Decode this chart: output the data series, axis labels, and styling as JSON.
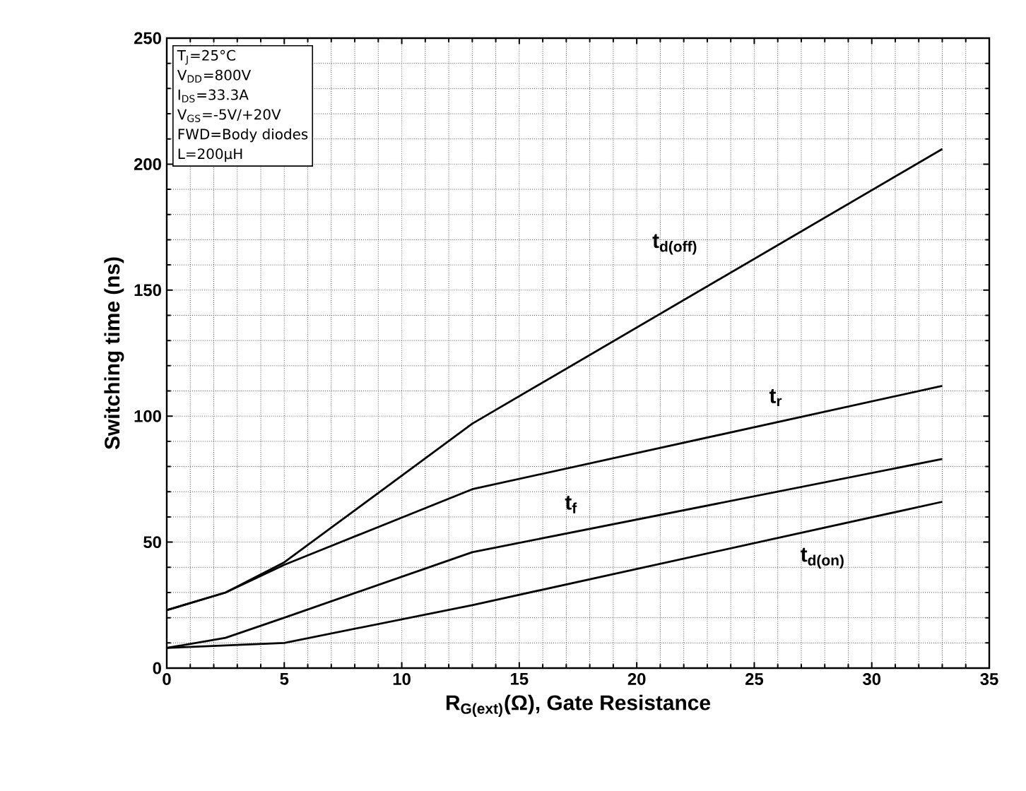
{
  "chart_data": {
    "type": "line",
    "xlabel": "R$_{G(ext)}$(Ω), Gate Resistance",
    "ylabel": "Switching time (ns)",
    "x": [
      0,
      2.5,
      5,
      13,
      33
    ],
    "series": [
      {
        "name": "t$_{d(off)}$",
        "color": "#000000",
        "values": [
          23,
          30,
          42,
          97,
          206
        ]
      },
      {
        "name": "t$_{r}$",
        "color": "#000000",
        "values": [
          23,
          30,
          41,
          71,
          112
        ]
      },
      {
        "name": "t$_{f}$",
        "color": "#000000",
        "values": [
          8,
          12,
          20,
          46,
          83
        ]
      },
      {
        "name": "t$_{d(on)}$",
        "color": "#000000",
        "values": [
          8,
          9,
          10,
          25,
          66
        ]
      }
    ],
    "xlim": [
      0,
      35
    ],
    "ylim": [
      0,
      250
    ],
    "xticks": [
      0,
      5,
      10,
      15,
      20,
      25,
      30,
      35
    ],
    "yticks": [
      0,
      50,
      100,
      150,
      200,
      250
    ],
    "grid": true,
    "marker": "none",
    "line_style": "solid",
    "annotations": [
      "T$_{J}$=25°C",
      "V$_{DD}$=800V",
      "I$_{DS}$=33.3A",
      "V$_{GS}$=-5V/+20V",
      "FWD=Body diodes",
      "L=200µH"
    ]
  }
}
